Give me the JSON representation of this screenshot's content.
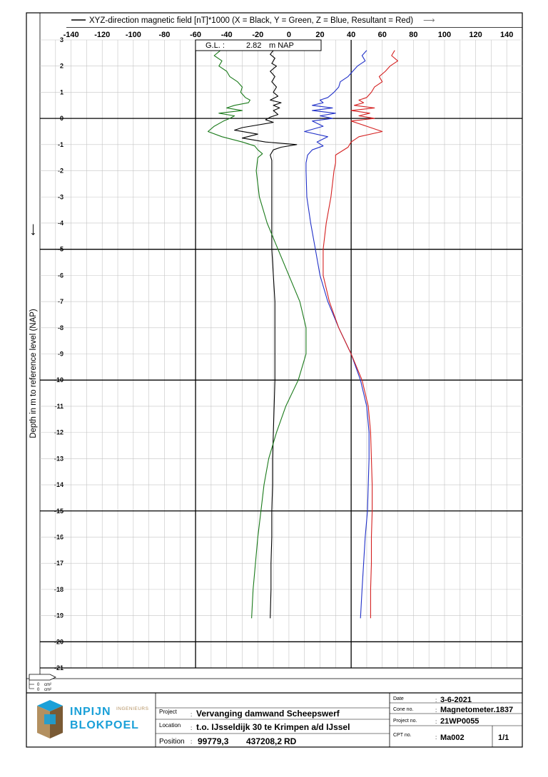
{
  "chart_data": {
    "type": "line",
    "legend": "XYZ-direction magnetic field [nT]*1000 (X = Black, Y = Green, Z = Blue, Resultant = Red)",
    "legend_arrow": "⟶",
    "ylabel": "Depth in m to reference level (NAP)",
    "ylabel_arrow": "⟵",
    "xlim": [
      -160,
      150
    ],
    "ylim": [
      3,
      -21
    ],
    "x_ticks": [
      -140,
      -120,
      -100,
      -80,
      -60,
      -40,
      -20,
      0,
      20,
      40,
      60,
      80,
      100,
      120,
      140
    ],
    "y_ticks": [
      3,
      2,
      1,
      0,
      -1,
      -2,
      -3,
      -4,
      -5,
      -6,
      -7,
      -8,
      -9,
      -10,
      -11,
      -12,
      -13,
      -14,
      -15,
      -16,
      -17,
      -18,
      -19,
      -20,
      -21
    ],
    "x_major_lines": [
      -60,
      40
    ],
    "y_major_lines": [
      0,
      -5,
      -10,
      -15,
      -20
    ],
    "annotation": {
      "label": "G.L. :",
      "value": "2.82",
      "unit": "m NAP"
    },
    "series": [
      {
        "name": "X",
        "color": "#000000",
        "points": [
          [
            -10,
            2.6
          ],
          [
            -12,
            2.45
          ],
          [
            -9,
            2.3
          ],
          [
            -11,
            2.1
          ],
          [
            -8,
            2.0
          ],
          [
            -12,
            1.8
          ],
          [
            -9,
            1.6
          ],
          [
            -11,
            1.4
          ],
          [
            -8,
            1.2
          ],
          [
            -10,
            1.0
          ],
          [
            -7,
            0.85
          ],
          [
            -12,
            0.7
          ],
          [
            -5,
            0.6
          ],
          [
            -10,
            0.5
          ],
          [
            -6,
            0.4
          ],
          [
            -10,
            0.3
          ],
          [
            -7,
            0.15
          ],
          [
            -12,
            0.05
          ],
          [
            -15,
            -0.05
          ],
          [
            -10,
            -0.15
          ],
          [
            -30,
            -0.35
          ],
          [
            -35,
            -0.45
          ],
          [
            -20,
            -0.6
          ],
          [
            -30,
            -0.75
          ],
          [
            -15,
            -0.9
          ],
          [
            5,
            -1.0
          ],
          [
            -5,
            -1.1
          ],
          [
            -10,
            -1.2
          ],
          [
            -12,
            -1.4
          ],
          [
            -11,
            -1.6
          ],
          [
            -11,
            -2.0
          ],
          [
            -11,
            -3.0
          ],
          [
            -11,
            -4.0
          ],
          [
            -11,
            -5.0
          ],
          [
            -10,
            -6.0
          ],
          [
            -9,
            -7.0
          ],
          [
            -9,
            -8.0
          ],
          [
            -9,
            -9.0
          ],
          [
            -9,
            -10.0
          ],
          [
            -9.5,
            -11.0
          ],
          [
            -10,
            -12.0
          ],
          [
            -10.5,
            -13.0
          ],
          [
            -10.5,
            -14.0
          ],
          [
            -11,
            -15.0
          ],
          [
            -11,
            -16.0
          ],
          [
            -11.5,
            -17.0
          ],
          [
            -11.5,
            -18.0
          ],
          [
            -12,
            -19.1
          ]
        ]
      },
      {
        "name": "Y",
        "color": "#1a7a1a",
        "points": [
          [
            -44,
            2.6
          ],
          [
            -48,
            2.4
          ],
          [
            -43,
            2.2
          ],
          [
            -45,
            2.0
          ],
          [
            -40,
            1.8
          ],
          [
            -38,
            1.6
          ],
          [
            -33,
            1.4
          ],
          [
            -30,
            1.2
          ],
          [
            -31,
            1.0
          ],
          [
            -28,
            0.8
          ],
          [
            -25,
            0.7
          ],
          [
            -26,
            0.6
          ],
          [
            -35,
            0.5
          ],
          [
            -40,
            0.4
          ],
          [
            -30,
            0.3
          ],
          [
            -45,
            0.2
          ],
          [
            -35,
            0.1
          ],
          [
            -38,
            0.0
          ],
          [
            -42,
            -0.1
          ],
          [
            -48,
            -0.3
          ],
          [
            -52,
            -0.5
          ],
          [
            -43,
            -0.7
          ],
          [
            -30,
            -0.9
          ],
          [
            -22,
            -1.05
          ],
          [
            -20,
            -1.2
          ],
          [
            -17,
            -1.35
          ],
          [
            -20,
            -1.5
          ],
          [
            -21,
            -2.0
          ],
          [
            -19,
            -3.0
          ],
          [
            -14,
            -4.0
          ],
          [
            -7,
            -5.0
          ],
          [
            0,
            -6.0
          ],
          [
            7,
            -7.0
          ],
          [
            11,
            -8.0
          ],
          [
            11,
            -9.0
          ],
          [
            6,
            -10.0
          ],
          [
            -2,
            -11.0
          ],
          [
            -8,
            -12.0
          ],
          [
            -13,
            -13.0
          ],
          [
            -16,
            -14.0
          ],
          [
            -18,
            -15.0
          ],
          [
            -20,
            -16.0
          ],
          [
            -21.5,
            -17.0
          ],
          [
            -23,
            -18.0
          ],
          [
            -24,
            -19.1
          ]
        ]
      },
      {
        "name": "Z",
        "color": "#2030c8",
        "points": [
          [
            50,
            2.6
          ],
          [
            47,
            2.4
          ],
          [
            49,
            2.2
          ],
          [
            44,
            2.0
          ],
          [
            41,
            1.8
          ],
          [
            38,
            1.6
          ],
          [
            33,
            1.4
          ],
          [
            32,
            1.2
          ],
          [
            29,
            1.0
          ],
          [
            25,
            0.8
          ],
          [
            20,
            0.7
          ],
          [
            22,
            0.6
          ],
          [
            15,
            0.5
          ],
          [
            28,
            0.4
          ],
          [
            15,
            0.3
          ],
          [
            30,
            0.2
          ],
          [
            20,
            0.1
          ],
          [
            28,
            0.0
          ],
          [
            15,
            -0.1
          ],
          [
            22,
            -0.3
          ],
          [
            10,
            -0.5
          ],
          [
            25,
            -0.7
          ],
          [
            18,
            -0.9
          ],
          [
            22,
            -1.05
          ],
          [
            15,
            -1.2
          ],
          [
            12,
            -1.4
          ],
          [
            11,
            -1.7
          ],
          [
            11,
            -2.0
          ],
          [
            11.5,
            -3.0
          ],
          [
            14,
            -4.0
          ],
          [
            17,
            -5.0
          ],
          [
            20,
            -6.0
          ],
          [
            25,
            -7.0
          ],
          [
            32,
            -8.0
          ],
          [
            40,
            -9.0
          ],
          [
            46,
            -10.0
          ],
          [
            50,
            -11.0
          ],
          [
            51.5,
            -12.0
          ],
          [
            51.5,
            -13.0
          ],
          [
            51,
            -14.0
          ],
          [
            50.5,
            -15.0
          ],
          [
            49,
            -16.0
          ],
          [
            48,
            -17.0
          ],
          [
            47,
            -18.0
          ],
          [
            46,
            -19.1
          ]
        ]
      },
      {
        "name": "Resultant",
        "color": "#d42020",
        "points": [
          [
            68,
            2.6
          ],
          [
            66,
            2.4
          ],
          [
            70,
            2.2
          ],
          [
            65,
            2.0
          ],
          [
            62,
            1.8
          ],
          [
            58,
            1.6
          ],
          [
            60,
            1.4
          ],
          [
            55,
            1.2
          ],
          [
            53,
            1.0
          ],
          [
            50,
            0.8
          ],
          [
            45,
            0.7
          ],
          [
            48,
            0.6
          ],
          [
            42,
            0.5
          ],
          [
            55,
            0.4
          ],
          [
            40,
            0.3
          ],
          [
            52,
            0.2
          ],
          [
            45,
            0.1
          ],
          [
            55,
            0.0
          ],
          [
            40,
            -0.1
          ],
          [
            50,
            -0.3
          ],
          [
            60,
            -0.5
          ],
          [
            45,
            -0.7
          ],
          [
            40,
            -0.9
          ],
          [
            38,
            -1.1
          ],
          [
            30,
            -1.4
          ],
          [
            30,
            -1.7
          ],
          [
            29,
            -2.0
          ],
          [
            27,
            -3.0
          ],
          [
            24,
            -4.0
          ],
          [
            22,
            -5.0
          ],
          [
            22,
            -6.0
          ],
          [
            26,
            -7.0
          ],
          [
            32,
            -8.0
          ],
          [
            40,
            -9.0
          ],
          [
            47,
            -10.0
          ],
          [
            51,
            -11.0
          ],
          [
            52.5,
            -12.0
          ],
          [
            53,
            -13.0
          ],
          [
            53.5,
            -14.0
          ],
          [
            53.5,
            -15.0
          ],
          [
            53,
            -16.0
          ],
          [
            53,
            -17.0
          ],
          [
            52.5,
            -18.0
          ],
          [
            52.5,
            -19.1
          ]
        ]
      }
    ]
  },
  "title_block": {
    "logo_main_1": "INPIJN",
    "logo_sup": "INGENIEURS",
    "logo_main_2": "BLOKPOEL",
    "project_label": "Project",
    "project_value": "Vervanging damwand Scheepswerf",
    "location_label": "Location",
    "location_value": "t.o. IJsseldijk 30 te Krimpen a/d IJssel",
    "position_label": "Position",
    "position_x": "99779,3",
    "position_y": "437208,2",
    "position_sys": "RD",
    "date_label": "Date",
    "date_value": "3-6-2021",
    "cone_label": "Cone no.",
    "cone_value": "Magnetometer.1837",
    "projectno_label": "Project no.",
    "projectno_value": "21WP0055",
    "cpt_label": "CPT no.",
    "cpt_value": "Ma002",
    "sheet_value": "1/1",
    "colon": ":"
  },
  "friction_legend": {
    "v1": "0",
    "u1": "cm²",
    "v2": "0",
    "u2": "cm²"
  }
}
